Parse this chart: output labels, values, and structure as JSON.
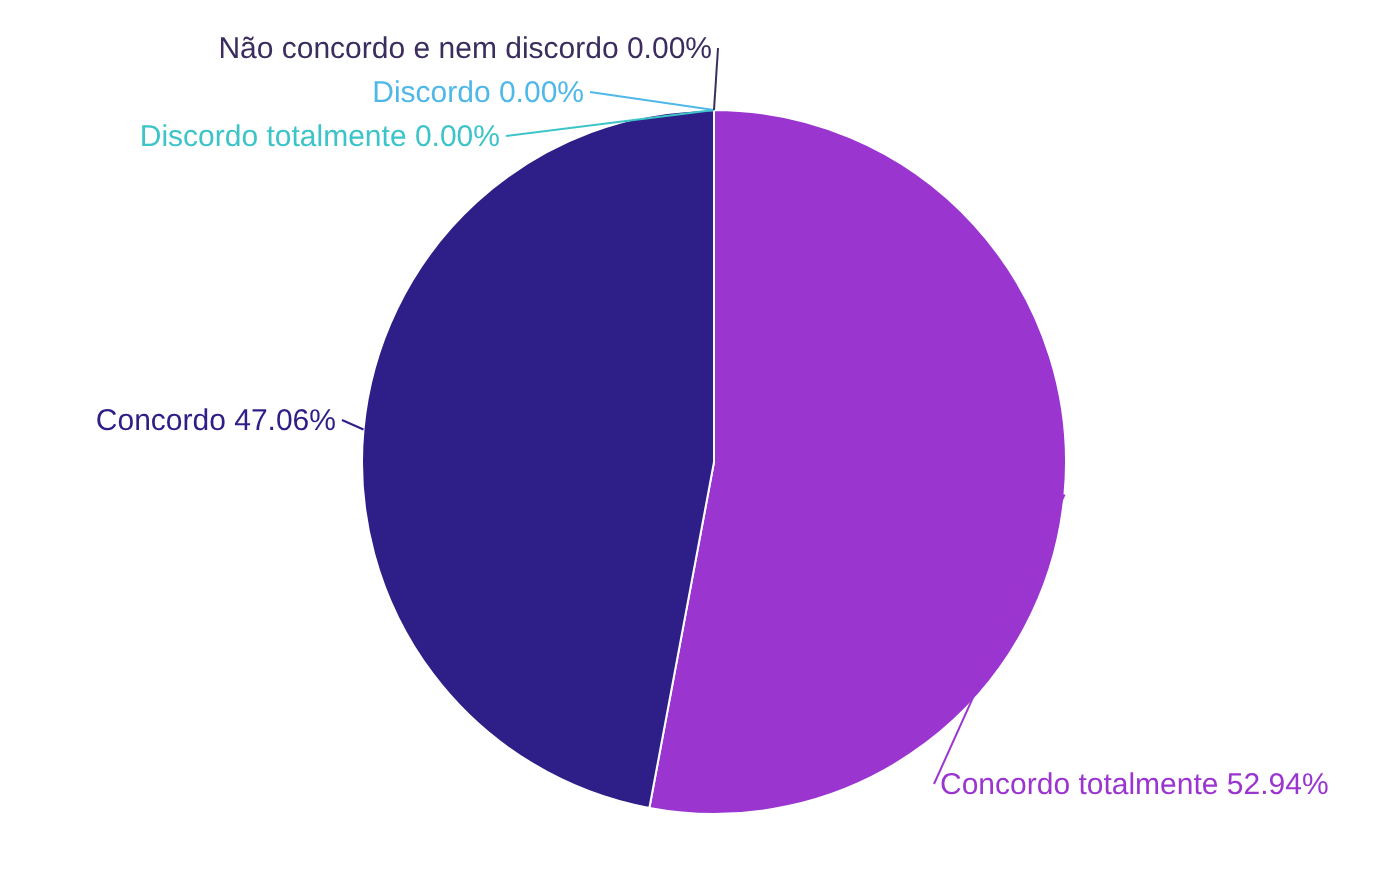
{
  "chart_data": {
    "type": "pie",
    "categories": [
      "Concordo totalmente",
      "Concordo",
      "Discordo totalmente",
      "Discordo",
      "Não concordo e nem discordo"
    ],
    "values": [
      52.94,
      47.06,
      0,
      0,
      0
    ],
    "value_labels": [
      "52.94%",
      "47.06%",
      "0.00%",
      "0.00%",
      "0.00%"
    ],
    "colors": [
      "#9b35d0",
      "#2e1e88",
      "#3cc4c8",
      "#4fb8e8",
      "#3b2d5e"
    ]
  }
}
